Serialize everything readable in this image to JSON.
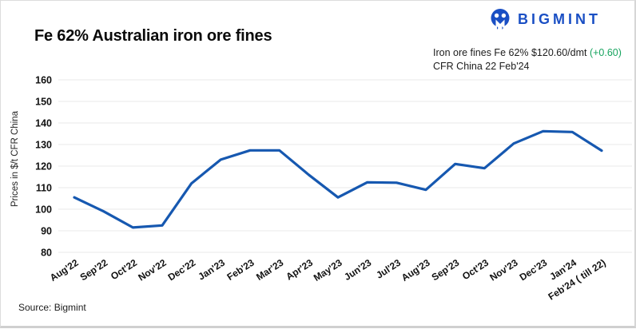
{
  "header": {
    "title": "Fe 62% Australian iron ore fines",
    "logo_text": "BIGMINT"
  },
  "annotation": {
    "line1_prefix": "Iron ore fines Fe 62% $120.60/dmt ",
    "change": "(+0.60)",
    "line2": "CFR China 22 Feb'24"
  },
  "footer": {
    "source": "Source: Bigmint"
  },
  "colors": {
    "line": "#1658b0",
    "logo": "#1a4fc4",
    "grid": "#e9e9e9",
    "change_green": "#17a45f"
  },
  "chart_data": {
    "type": "line",
    "title": "Fe 62% Australian iron ore fines",
    "categories": [
      "Aug'22",
      "Sep'22",
      "Oct'22",
      "Nov'22",
      "Dec'22",
      "Jan'23",
      "Feb'23",
      "Mar'23",
      "Apr'23",
      "May'23",
      "Jun'23",
      "Jul'23",
      "Aug'23",
      "Sep'23",
      "Oct'23",
      "Nov'23",
      "Dec'23",
      "Jan'24",
      "Feb'24 ( till 22)"
    ],
    "series": [
      {
        "name": "Iron ore fines Fe 62% CFR China",
        "values": [
          105.5,
          99,
          91.5,
          92.5,
          112,
          123,
          127.3,
          127.3,
          116,
          105.5,
          112.5,
          112.3,
          109,
          121,
          119,
          130.5,
          136.2,
          135.8,
          127.2
        ]
      }
    ],
    "xlabel": "",
    "ylabel": "Prices in $/t CFR China",
    "ylim": [
      80,
      160
    ],
    "ytick_step": 10,
    "grid": true,
    "legend_position": "none"
  }
}
